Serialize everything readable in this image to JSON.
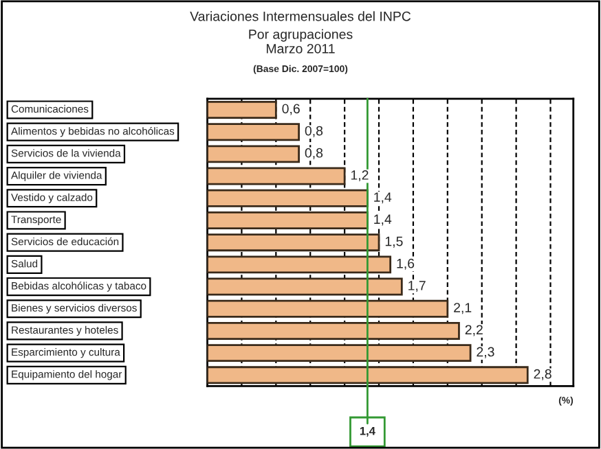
{
  "chart_data": {
    "type": "bar",
    "orientation": "horizontal",
    "title": "Variaciones Intermensuales del INPC",
    "subtitle": "Por agrupaciones\nMarzo 2011",
    "annotations": [
      "(Base Dic. 2007=100)"
    ],
    "xlabel": "(%)",
    "categories": [
      "Comunicaciones",
      "Alimentos y bebidas no alcohólicas",
      "Servicios de la vivienda",
      "Alquiler de vivienda",
      "Vestido y calzado",
      "Transporte",
      "Servicios de educación",
      "Salud",
      "Bebidas alcohólicas y tabaco",
      "Bienes y servicios diversos",
      "Restaurantes y hoteles",
      "Esparcimiento y cultura",
      "Equipamiento del hogar"
    ],
    "values": [
      0.6,
      0.8,
      0.8,
      1.2,
      1.4,
      1.4,
      1.5,
      1.6,
      1.7,
      2.1,
      2.2,
      2.3,
      2.8
    ],
    "value_labels": [
      "0,6",
      "0,8",
      "0,8",
      "1,2",
      "1,4",
      "1,4",
      "1,5",
      "1,6",
      "1,7",
      "2,1",
      "2,2",
      "2,3",
      "2,8"
    ],
    "color": "#f0b888",
    "xlim": [
      0,
      3.2
    ],
    "xticks": [
      {
        "value": 0.3,
        "label": null
      },
      {
        "value": 0.6,
        "label": null
      },
      {
        "value": 0.9,
        "label": null
      },
      {
        "value": 1.2,
        "label": null
      },
      {
        "value": 1.5,
        "label": null
      },
      {
        "value": 1.8,
        "label": null
      },
      {
        "value": 2.1,
        "label": null
      },
      {
        "value": 2.4,
        "label": null
      },
      {
        "value": 2.7,
        "label": null
      },
      {
        "value": 3.0,
        "label": null
      }
    ],
    "grid": "x",
    "ref_lines": [
      {
        "axis": "x",
        "value": 1.4,
        "label": "1,4",
        "color": "#339933"
      }
    ]
  }
}
